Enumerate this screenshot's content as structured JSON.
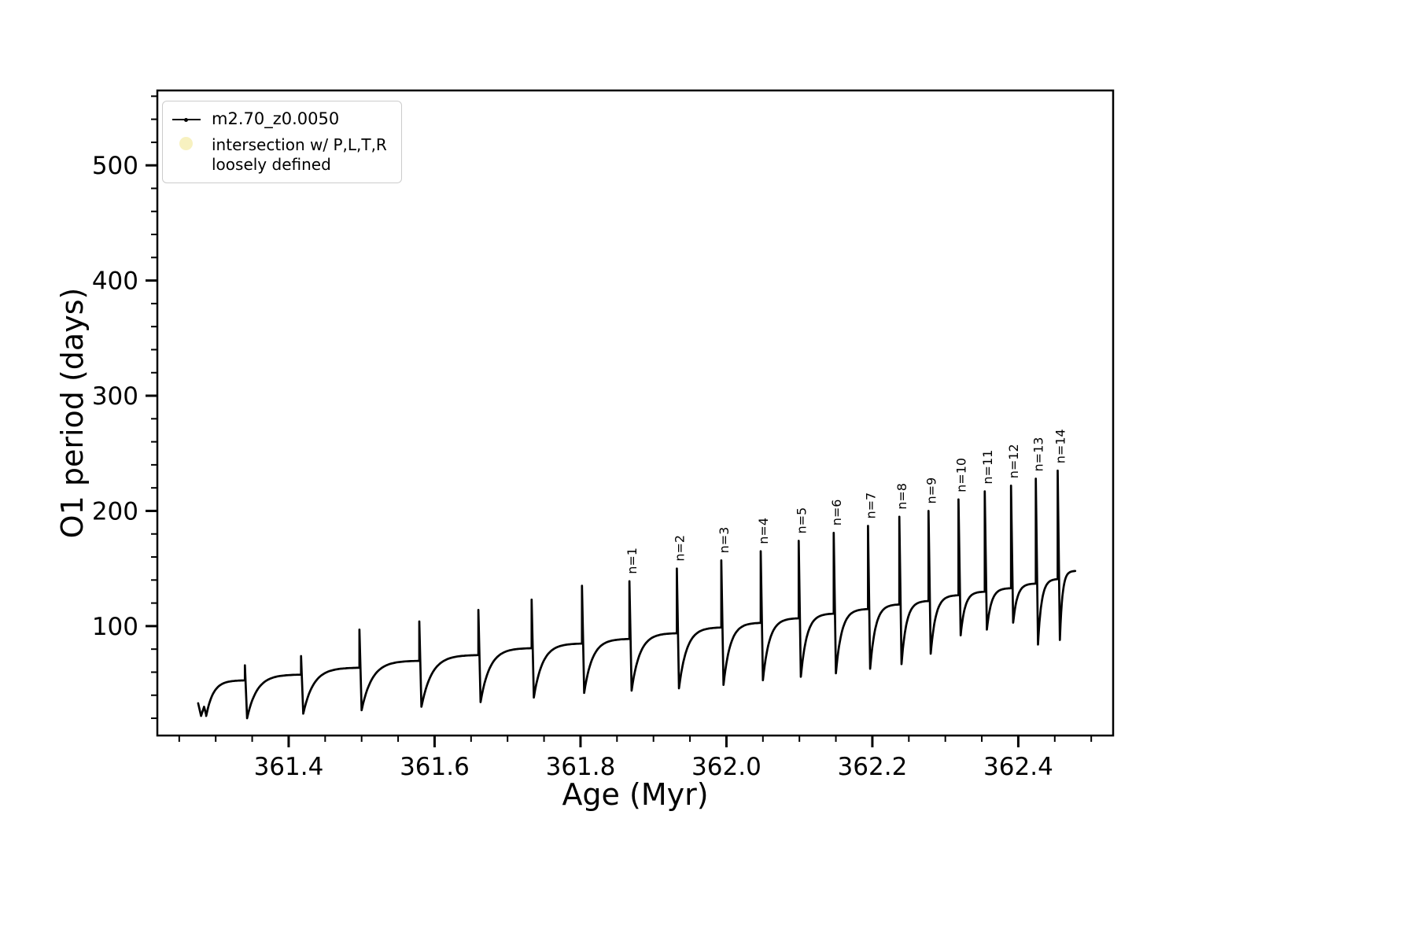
{
  "legend": {
    "series_label": "m2.70_z0.0050",
    "intersection_line1": "intersection w/ P,L,T,R",
    "intersection_line2": "loosely defined",
    "line_color": "#000000",
    "marker_color": "#f0e68c"
  },
  "chart_data": {
    "type": "line",
    "title": "",
    "xlabel": "Age (Myr)",
    "ylabel": "O1 period (days)",
    "xlim": [
      361.22,
      362.53
    ],
    "ylim": [
      5,
      565
    ],
    "xticks": [
      361.4,
      361.6,
      361.8,
      362.0,
      362.2,
      362.4
    ],
    "xtick_labels": [
      "361.4",
      "361.6",
      "361.8",
      "362.0",
      "362.2",
      "362.4"
    ],
    "yticks": [
      100,
      200,
      300,
      400,
      500
    ],
    "ytick_labels": [
      "100",
      "200",
      "300",
      "400",
      "500"
    ],
    "x_minor_step": 0.05,
    "y_minor_step": 20,
    "grid": false,
    "legend_position": "upper left",
    "series": [
      {
        "name": "m2.70_z0.0050",
        "color": "#000000",
        "style": "line-with-dot-markers"
      }
    ],
    "lead_in": [
      [
        361.276,
        33
      ],
      [
        361.28,
        22
      ],
      [
        361.284,
        30
      ],
      [
        361.287,
        23
      ]
    ],
    "cycles": [
      {
        "start": 361.287,
        "low": 22,
        "plateau": 53,
        "spike": 361.34,
        "peak": 66,
        "label": null
      },
      {
        "start": 361.343,
        "low": 20,
        "plateau": 58,
        "spike": 361.417,
        "peak": 74,
        "label": null
      },
      {
        "start": 361.42,
        "low": 24,
        "plateau": 64,
        "spike": 361.497,
        "peak": 97,
        "label": null
      },
      {
        "start": 361.5,
        "low": 27,
        "plateau": 70,
        "spike": 361.579,
        "peak": 104,
        "label": null
      },
      {
        "start": 361.582,
        "low": 30,
        "plateau": 75,
        "spike": 361.66,
        "peak": 114,
        "label": null
      },
      {
        "start": 361.663,
        "low": 34,
        "plateau": 81,
        "spike": 361.733,
        "peak": 123,
        "label": null
      },
      {
        "start": 361.736,
        "low": 38,
        "plateau": 85,
        "spike": 361.802,
        "peak": 135,
        "label": null
      },
      {
        "start": 361.805,
        "low": 42,
        "plateau": 89,
        "spike": 361.867,
        "peak": 139,
        "label": "n=1"
      },
      {
        "start": 361.87,
        "low": 44,
        "plateau": 94,
        "spike": 361.932,
        "peak": 150,
        "label": "n=2"
      },
      {
        "start": 361.935,
        "low": 46,
        "plateau": 99,
        "spike": 361.993,
        "peak": 157,
        "label": "n=3"
      },
      {
        "start": 361.996,
        "low": 49,
        "plateau": 103,
        "spike": 362.047,
        "peak": 165,
        "label": "n=4"
      },
      {
        "start": 362.05,
        "low": 53,
        "plateau": 107,
        "spike": 362.099,
        "peak": 174,
        "label": "n=5"
      },
      {
        "start": 362.102,
        "low": 56,
        "plateau": 111,
        "spike": 362.147,
        "peak": 181,
        "label": "n=6"
      },
      {
        "start": 362.15,
        "low": 59,
        "plateau": 115,
        "spike": 362.194,
        "peak": 187,
        "label": "n=7"
      },
      {
        "start": 362.197,
        "low": 63,
        "plateau": 119,
        "spike": 362.237,
        "peak": 195,
        "label": "n=8"
      },
      {
        "start": 362.24,
        "low": 67,
        "plateau": 122,
        "spike": 362.277,
        "peak": 200,
        "label": "n=9"
      },
      {
        "start": 362.28,
        "low": 76,
        "plateau": 127,
        "spike": 362.318,
        "peak": 210,
        "label": "n=10"
      },
      {
        "start": 362.321,
        "low": 92,
        "plateau": 130,
        "spike": 362.354,
        "peak": 217,
        "label": "n=11"
      },
      {
        "start": 362.357,
        "low": 97,
        "plateau": 133,
        "spike": 362.39,
        "peak": 222,
        "label": "n=12"
      },
      {
        "start": 362.393,
        "low": 103,
        "plateau": 137,
        "spike": 362.424,
        "peak": 228,
        "label": "n=13"
      },
      {
        "start": 362.427,
        "low": 84,
        "plateau": 141,
        "spike": 362.454,
        "peak": 235,
        "label": "n=14"
      }
    ],
    "tail": {
      "start": 362.457,
      "low": 88,
      "plateau": 148,
      "end": 362.478
    }
  }
}
